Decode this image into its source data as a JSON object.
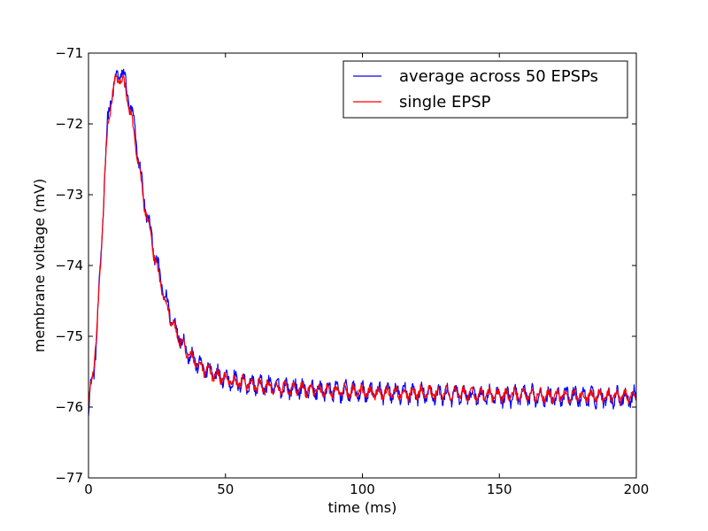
{
  "chart_data": {
    "type": "line",
    "title": "",
    "xlabel": "time (ms)",
    "ylabel": "membrane voltage (mV)",
    "xlim": [
      0,
      200
    ],
    "ylim": [
      -77,
      -71
    ],
    "xticks": [
      0,
      50,
      100,
      150,
      200
    ],
    "yticks": [
      -77,
      -76,
      -75,
      -74,
      -73,
      -72,
      -71
    ],
    "xtick_labels": [
      "0",
      "50",
      "100",
      "150",
      "200"
    ],
    "ytick_labels": [
      "−77",
      "−76",
      "−75",
      "−74",
      "−73",
      "−72",
      "−71"
    ],
    "grid": false,
    "legend_position": "top-right",
    "series": [
      {
        "name": "average across 50 EPSPs",
        "color": "#0000ff",
        "x": [
          0,
          1,
          2,
          3,
          4,
          5,
          6,
          7,
          8,
          9,
          10,
          11,
          12,
          13,
          14,
          15,
          16,
          17,
          18,
          19,
          20,
          22,
          24,
          26,
          28,
          30,
          32,
          34,
          36,
          38,
          40,
          42,
          44,
          46,
          48,
          50,
          55,
          60,
          65,
          70,
          75,
          80,
          85,
          90,
          95,
          100,
          110,
          120,
          130,
          140,
          150,
          160,
          170,
          180,
          190,
          200
        ],
        "y": [
          -76.05,
          -75.7,
          -75.45,
          -75.0,
          -74.3,
          -73.5,
          -72.6,
          -72.0,
          -71.7,
          -71.5,
          -71.4,
          -71.3,
          -71.25,
          -71.35,
          -71.5,
          -71.7,
          -71.9,
          -72.1,
          -72.4,
          -72.7,
          -73.0,
          -73.4,
          -73.8,
          -74.15,
          -74.45,
          -74.7,
          -74.9,
          -75.05,
          -75.2,
          -75.3,
          -75.38,
          -75.45,
          -75.5,
          -75.53,
          -75.56,
          -75.6,
          -75.65,
          -75.68,
          -75.7,
          -75.72,
          -75.74,
          -75.75,
          -75.76,
          -75.77,
          -75.78,
          -75.79,
          -75.8,
          -75.81,
          -75.82,
          -75.83,
          -75.84,
          -75.84,
          -75.85,
          -75.85,
          -75.86,
          -75.86
        ],
        "noise_amplitude": 0.18
      },
      {
        "name": "single EPSP",
        "color": "#ff0000",
        "x": [
          0,
          1,
          2,
          3,
          4,
          5,
          6,
          7,
          8,
          9,
          10,
          11,
          12,
          13,
          14,
          15,
          16,
          17,
          18,
          19,
          20,
          22,
          24,
          26,
          28,
          30,
          32,
          34,
          36,
          38,
          40,
          42,
          44,
          46,
          48,
          50,
          55,
          60,
          65,
          70,
          75,
          80,
          85,
          90,
          95,
          100,
          110,
          120,
          130,
          140,
          150,
          160,
          170,
          180,
          190,
          200
        ],
        "y": [
          -76.0,
          -75.65,
          -75.4,
          -74.95,
          -74.3,
          -73.5,
          -72.7,
          -72.1,
          -71.75,
          -71.5,
          -71.4,
          -71.35,
          -71.35,
          -71.45,
          -71.6,
          -71.8,
          -72.0,
          -72.2,
          -72.5,
          -72.75,
          -73.05,
          -73.45,
          -73.85,
          -74.2,
          -74.5,
          -74.75,
          -74.95,
          -75.1,
          -75.22,
          -75.32,
          -75.4,
          -75.46,
          -75.5,
          -75.54,
          -75.57,
          -75.6,
          -75.65,
          -75.68,
          -75.7,
          -75.72,
          -75.74,
          -75.75,
          -75.76,
          -75.77,
          -75.78,
          -75.79,
          -75.8,
          -75.8,
          -75.81,
          -75.82,
          -75.83,
          -75.83,
          -75.84,
          -75.84,
          -75.85,
          -75.85
        ],
        "noise_amplitude": 0.12
      }
    ]
  }
}
